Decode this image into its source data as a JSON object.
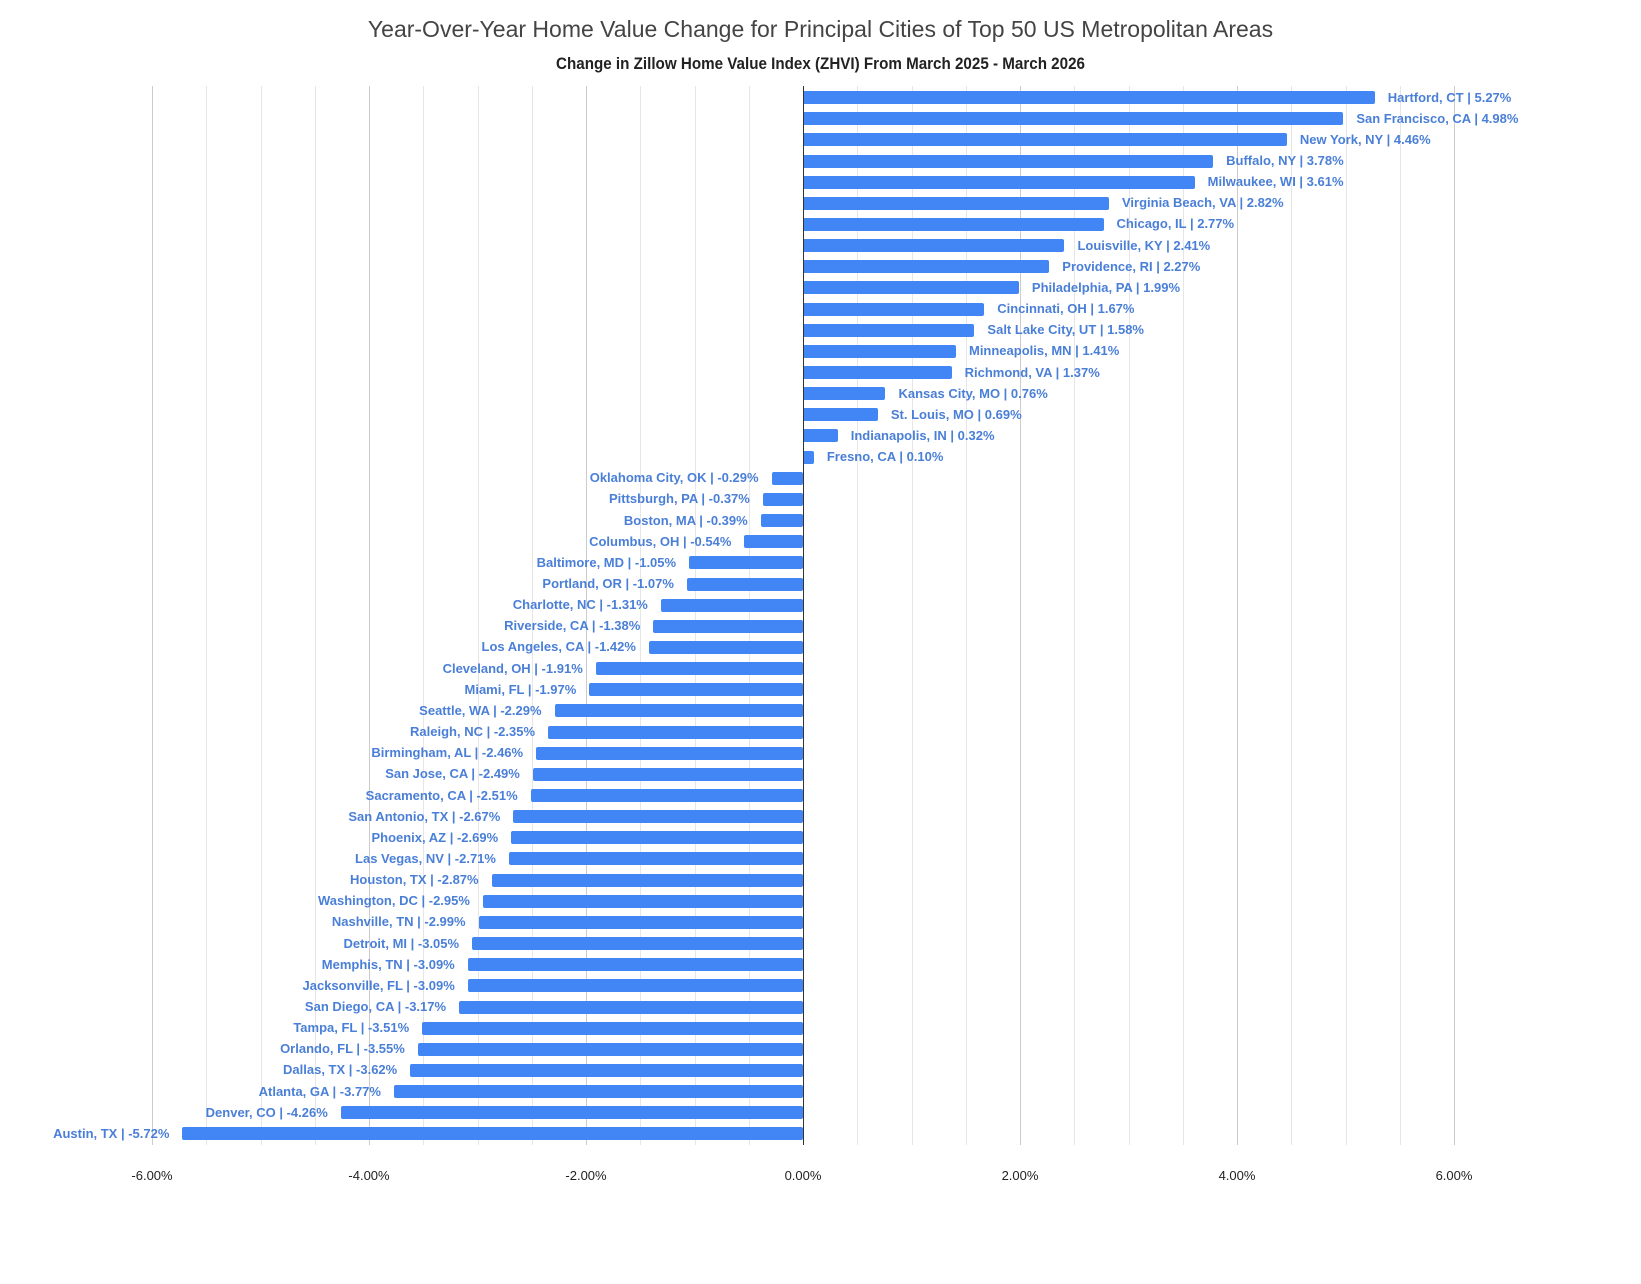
{
  "chart_data": {
    "type": "bar",
    "orientation": "horizontal",
    "title": "Year-Over-Year Home Value Change for Principal Cities of Top 50 US Metropolitan Areas",
    "subtitle": "Change in Zillow Home Value Index (ZHVI) From March 2025 - March 2026",
    "xlabel": "",
    "ylabel": "",
    "xlim": [
      -6.0,
      6.0
    ],
    "x_ticks": [
      "-6.00%",
      "-4.00%",
      "-2.00%",
      "0.00%",
      "2.00%",
      "4.00%",
      "6.00%"
    ],
    "grid": true,
    "legend": null,
    "bar_color": "#4285f4",
    "label_color": "#4a7fd8",
    "categories": [
      "Hartford, CT",
      "San Francisco, CA",
      "New York, NY",
      "Buffalo, NY",
      "Milwaukee, WI",
      "Virginia Beach, VA",
      "Chicago, IL",
      "Louisville, KY",
      "Providence, RI",
      "Philadelphia, PA",
      "Cincinnati, OH",
      "Salt Lake City, UT",
      "Minneapolis, MN",
      "Richmond, VA",
      "Kansas City, MO",
      "St. Louis, MO",
      "Indianapolis, IN",
      "Fresno, CA",
      "Oklahoma City, OK",
      "Pittsburgh, PA",
      "Boston, MA",
      "Columbus, OH",
      "Baltimore, MD",
      "Portland, OR",
      "Charlotte, NC",
      "Riverside, CA",
      "Los Angeles, CA",
      "Cleveland, OH",
      "Miami, FL",
      "Seattle, WA",
      "Raleigh, NC",
      "Birmingham, AL",
      "San Jose, CA",
      "Sacramento, CA",
      "San Antonio, TX",
      "Phoenix, AZ",
      "Las Vegas, NV",
      "Houston, TX",
      "Washington, DC",
      "Nashville, TN",
      "Detroit, MI",
      "Memphis, TN",
      "Jacksonville, FL",
      "San Diego, CA",
      "Tampa, FL",
      "Orlando, FL",
      "Dallas, TX",
      "Atlanta, GA",
      "Denver, CO",
      "Austin, TX"
    ],
    "values": [
      5.27,
      4.98,
      4.46,
      3.78,
      3.61,
      2.82,
      2.77,
      2.41,
      2.27,
      1.99,
      1.67,
      1.58,
      1.41,
      1.37,
      0.76,
      0.69,
      0.32,
      0.1,
      -0.29,
      -0.37,
      -0.39,
      -0.54,
      -1.05,
      -1.07,
      -1.31,
      -1.38,
      -1.42,
      -1.91,
      -1.97,
      -2.29,
      -2.35,
      -2.46,
      -2.49,
      -2.51,
      -2.67,
      -2.69,
      -2.71,
      -2.87,
      -2.95,
      -2.99,
      -3.05,
      -3.09,
      -3.09,
      -3.17,
      -3.51,
      -3.55,
      -3.62,
      -3.77,
      -4.26,
      -5.72
    ],
    "data_labels": [
      "Hartford, CT  |  5.27%",
      "San Francisco, CA  |  4.98%",
      "New York, NY  |  4.46%",
      "Buffalo, NY  |  3.78%",
      "Milwaukee, WI  |  3.61%",
      "Virginia Beach, VA  |  2.82%",
      "Chicago, IL  |  2.77%",
      "Louisville, KY  |  2.41%",
      "Providence, RI  |  2.27%",
      "Philadelphia, PA  |  1.99%",
      "Cincinnati, OH  |  1.67%",
      "Salt Lake City, UT  |  1.58%",
      "Minneapolis, MN  |  1.41%",
      "Richmond, VA  |  1.37%",
      "Kansas City, MO  |  0.76%",
      "St. Louis, MO  |  0.69%",
      "Indianapolis, IN  |  0.32%",
      "Fresno, CA  |  0.10%",
      "Oklahoma City, OK  |  -0.29%",
      "Pittsburgh, PA  |  -0.37%",
      "Boston, MA  |  -0.39%",
      "Columbus, OH  |  -0.54%",
      "Baltimore, MD  |  -1.05%",
      "Portland, OR  |  -1.07%",
      "Charlotte, NC  |  -1.31%",
      "Riverside, CA  |  -1.38%",
      "Los Angeles, CA  |  -1.42%",
      "Cleveland, OH  |  -1.91%",
      "Miami, FL  |  -1.97%",
      "Seattle, WA  |  -2.29%",
      "Raleigh, NC  |  -2.35%",
      "Birmingham, AL  |  -2.46%",
      "San Jose, CA  |  -2.49%",
      "Sacramento, CA  |  -2.51%",
      "San Antonio, TX  |  -2.67%",
      "Phoenix, AZ  |  -2.69%",
      "Las Vegas, NV  |  -2.71%",
      "Houston, TX  |  -2.87%",
      "Washington, DC  |  -2.95%",
      "Nashville, TN  |  -2.99%",
      "Detroit, MI  |  -3.05%",
      "Memphis, TN  |  -3.09%",
      "Jacksonville, FL  |  -3.09%",
      "San Diego, CA  |  -3.17%",
      "Tampa, FL  |  -3.51%",
      "Orlando, FL  |  -3.55%",
      "Dallas, TX  |  -3.62%",
      "Atlanta, GA  |  -3.77%",
      "Denver, CO  |  -4.26%",
      "Austin, TX  |  -5.72%"
    ]
  }
}
